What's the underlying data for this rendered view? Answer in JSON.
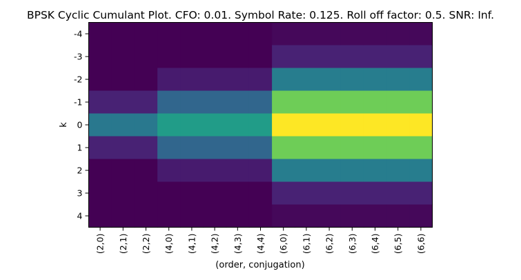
{
  "chart_data": {
    "type": "heatmap",
    "title": "BPSK Cyclic Cumulant Plot. CFO:  0.01. Symbol Rate:  0.125. Roll off factor: 0.5. SNR: Inf.",
    "xlabel": "(order, conjugation)",
    "ylabel": "k",
    "x_categories": [
      "(2,0)",
      "(2,1)",
      "(2,2)",
      "(4,0)",
      "(4,1)",
      "(4,2)",
      "(4,3)",
      "(4,4)",
      "(6,0)",
      "(6,1)",
      "(6,2)",
      "(6,3)",
      "(6,4)",
      "(6,5)",
      "(6,6)"
    ],
    "y_categories": [
      "-4",
      "-3",
      "-2",
      "-1",
      "0",
      "1",
      "2",
      "3",
      "4"
    ],
    "colormap": "viridis",
    "grid": false,
    "values": [
      [
        0.0,
        0.0,
        0.0,
        0.0,
        0.0,
        0.0,
        0.0,
        0.0,
        0.02,
        0.02,
        0.02,
        0.02,
        0.02,
        0.02,
        0.02
      ],
      [
        0.0,
        0.0,
        0.0,
        0.0,
        0.0,
        0.0,
        0.0,
        0.0,
        0.1,
        0.1,
        0.1,
        0.1,
        0.1,
        0.1,
        0.1
      ],
      [
        0.0,
        0.0,
        0.0,
        0.08,
        0.08,
        0.08,
        0.08,
        0.08,
        0.42,
        0.42,
        0.42,
        0.42,
        0.42,
        0.42,
        0.42
      ],
      [
        0.1,
        0.1,
        0.1,
        0.33,
        0.33,
        0.33,
        0.33,
        0.33,
        0.78,
        0.78,
        0.78,
        0.78,
        0.78,
        0.78,
        0.78
      ],
      [
        0.4,
        0.4,
        0.4,
        0.55,
        0.55,
        0.55,
        0.55,
        0.55,
        1.0,
        1.0,
        1.0,
        1.0,
        1.0,
        1.0,
        1.0
      ],
      [
        0.1,
        0.1,
        0.1,
        0.33,
        0.33,
        0.33,
        0.33,
        0.33,
        0.78,
        0.78,
        0.78,
        0.78,
        0.78,
        0.78,
        0.78
      ],
      [
        0.0,
        0.0,
        0.0,
        0.08,
        0.08,
        0.08,
        0.08,
        0.08,
        0.42,
        0.42,
        0.42,
        0.42,
        0.42,
        0.42,
        0.42
      ],
      [
        0.0,
        0.0,
        0.0,
        0.0,
        0.0,
        0.0,
        0.0,
        0.0,
        0.1,
        0.1,
        0.1,
        0.1,
        0.1,
        0.1,
        0.1
      ],
      [
        0.0,
        0.0,
        0.0,
        0.0,
        0.0,
        0.0,
        0.0,
        0.0,
        0.02,
        0.02,
        0.02,
        0.02,
        0.02,
        0.02,
        0.02
      ]
    ]
  }
}
